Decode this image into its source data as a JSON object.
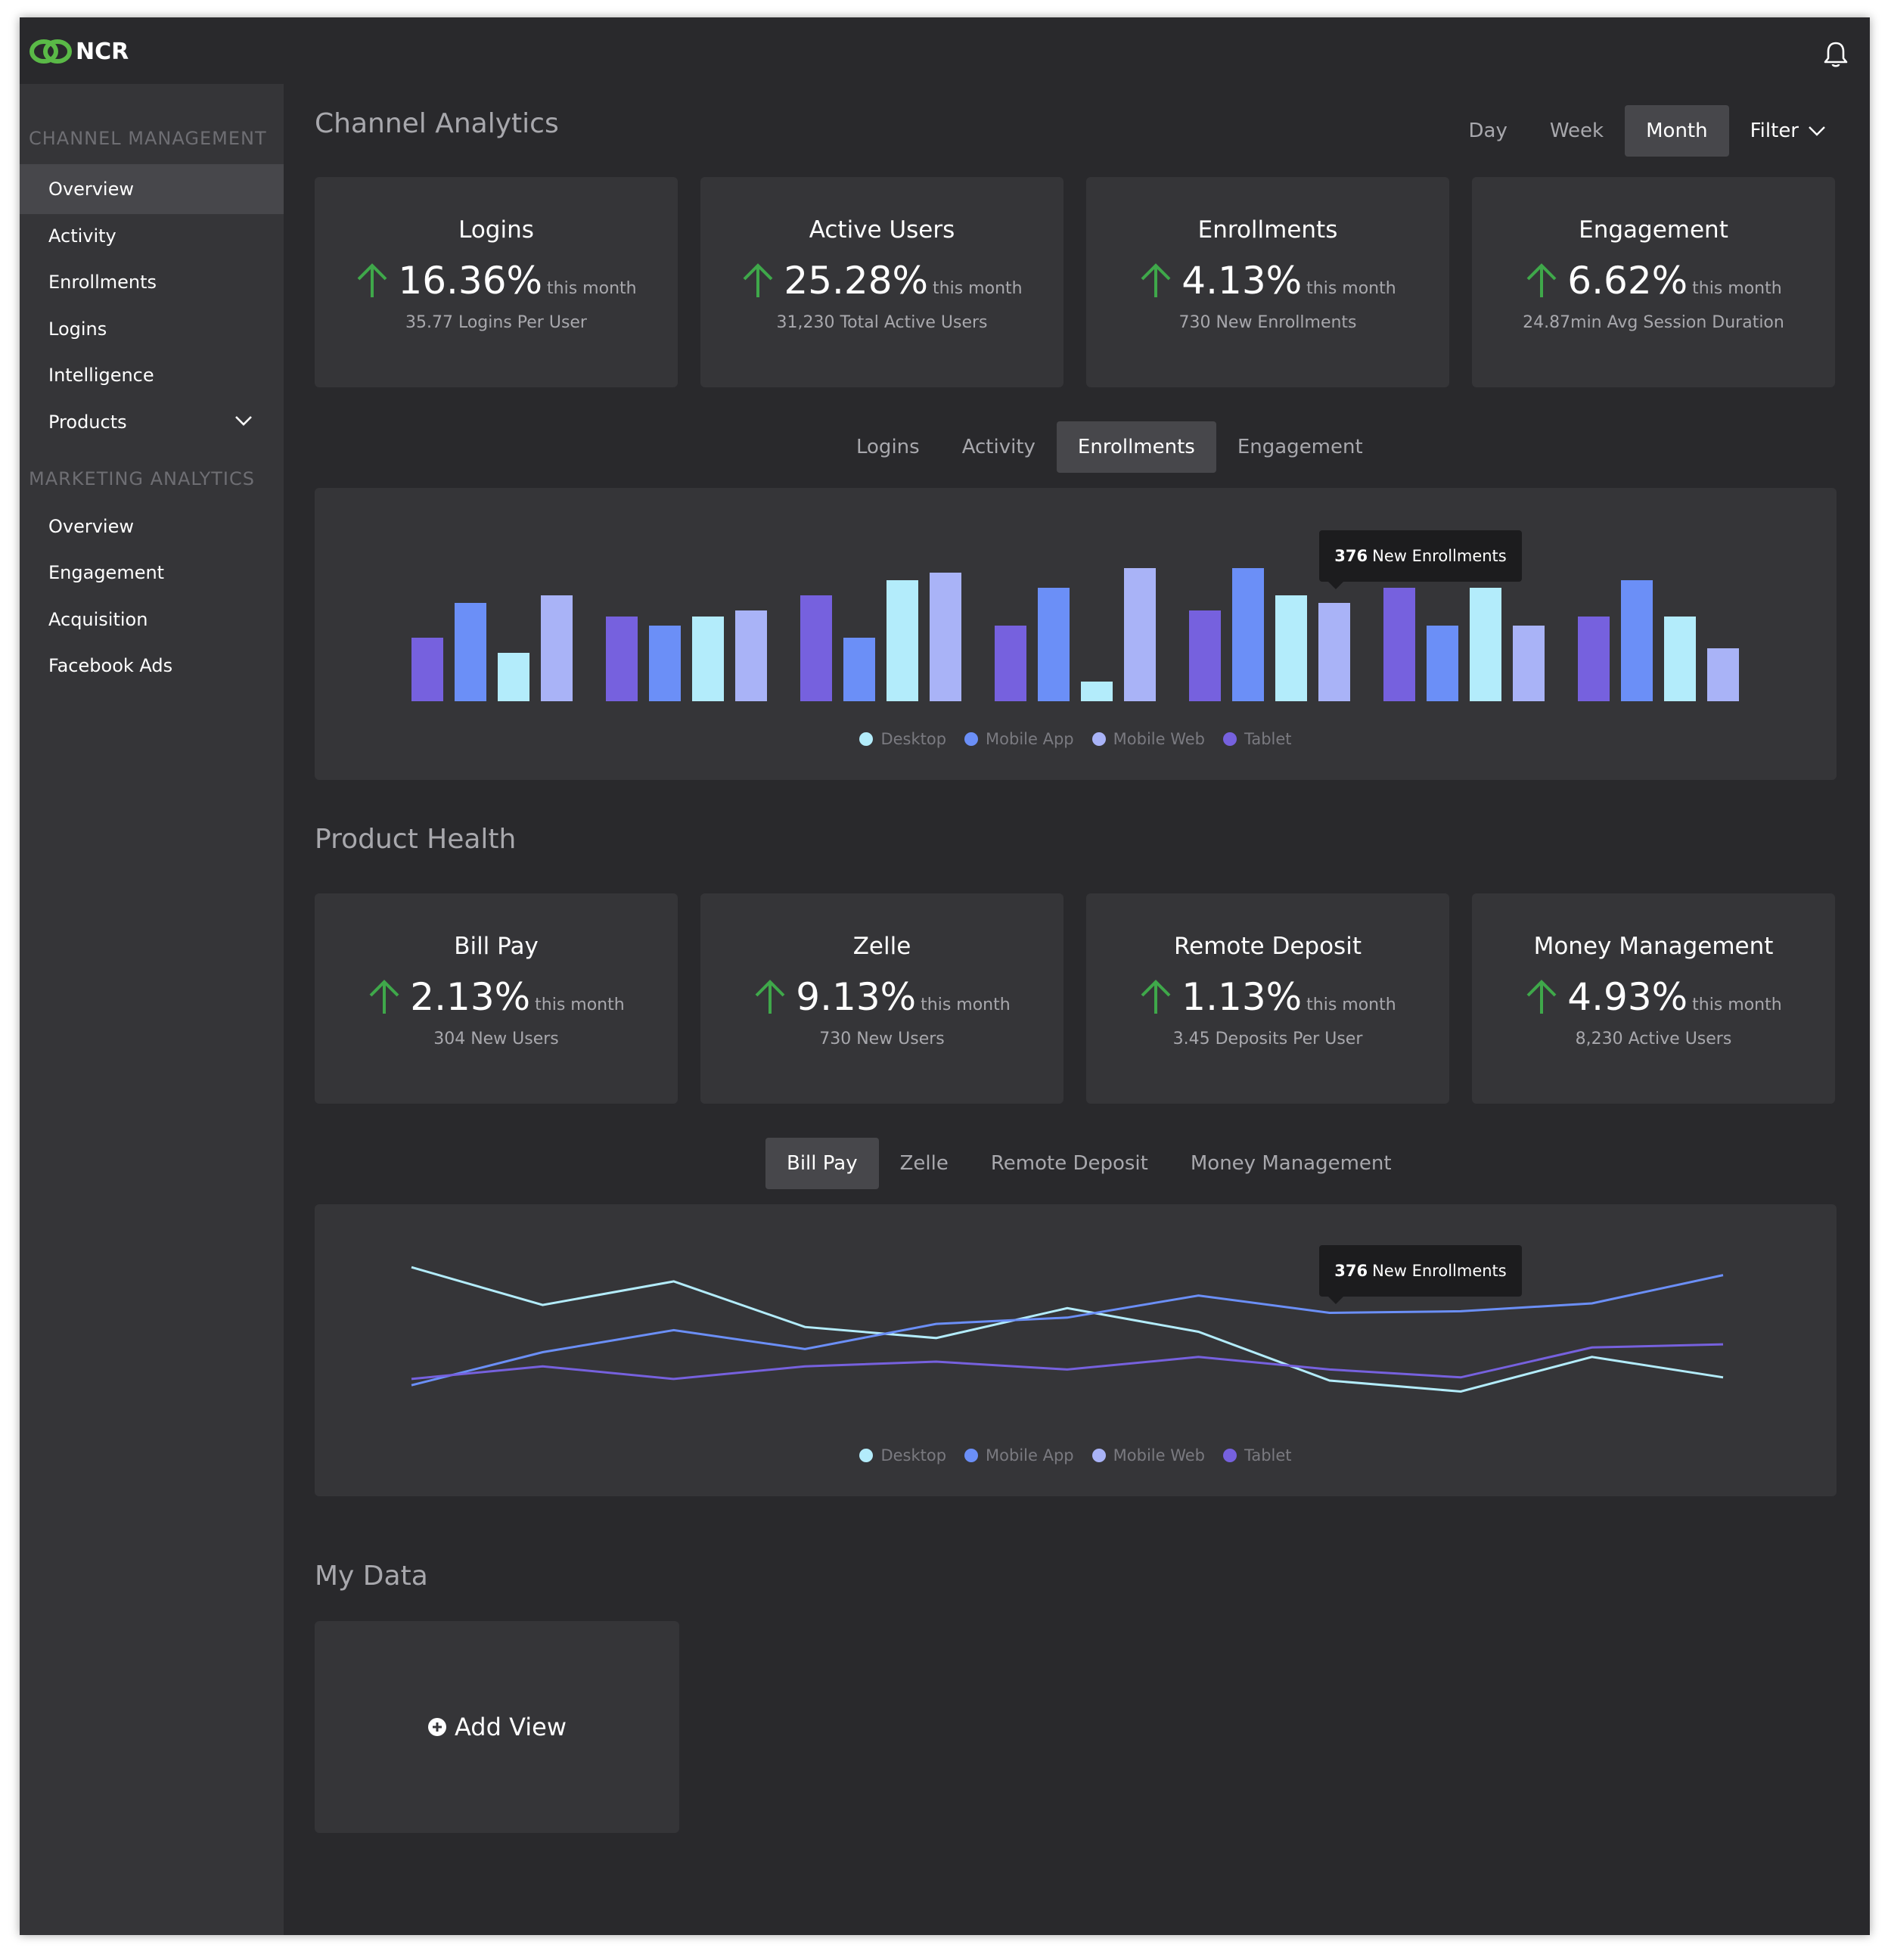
{
  "brand": {
    "name": "NCR"
  },
  "sidebar": {
    "sections": [
      {
        "title": "CHANNEL MANAGEMENT",
        "items": [
          "Overview",
          "Activity",
          "Enrollments",
          "Logins",
          "Intelligence",
          "Products"
        ]
      },
      {
        "title": "MARKETING ANALYTICS",
        "items": [
          "Overview",
          "Engagement",
          "Acquisition",
          "Facebook Ads"
        ]
      }
    ]
  },
  "channel": {
    "title": "Channel Analytics",
    "ranges": [
      "Day",
      "Week",
      "Month"
    ],
    "active_range": "Month",
    "filter_label": "Filter",
    "cards": [
      {
        "title": "Logins",
        "value": "16.36%",
        "unit": "this month",
        "sub": "35.77 Logins Per User"
      },
      {
        "title": "Active Users",
        "value": "25.28%",
        "unit": "this month",
        "sub": "31,230 Total Active Users"
      },
      {
        "title": "Enrollments",
        "value": "4.13%",
        "unit": "this month",
        "sub": "730 New Enrollments"
      },
      {
        "title": "Engagement",
        "value": "6.62%",
        "unit": "this month",
        "sub": "24.87min Avg Session Duration"
      }
    ],
    "tabs": [
      "Logins",
      "Activity",
      "Enrollments",
      "Engagement"
    ],
    "active_tab": "Enrollments",
    "tooltip": {
      "value": "376",
      "label": "New Enrollments"
    }
  },
  "product": {
    "title": "Product Health",
    "cards": [
      {
        "title": "Bill Pay",
        "value": "2.13%",
        "unit": "this month",
        "sub": "304 New Users"
      },
      {
        "title": "Zelle",
        "value": "9.13%",
        "unit": "this month",
        "sub": "730 New Users"
      },
      {
        "title": "Remote Deposit",
        "value": "1.13%",
        "unit": "this month",
        "sub": "3.45 Deposits Per User"
      },
      {
        "title": "Money Management",
        "value": "4.93%",
        "unit": "this month",
        "sub": "8,230 Active Users"
      }
    ],
    "tabs": [
      "Bill Pay",
      "Zelle",
      "Remote Deposit",
      "Money Management"
    ],
    "active_tab": "Bill Pay",
    "tooltip": {
      "value": "376",
      "label": "New Enrollments"
    }
  },
  "mydata": {
    "title": "My Data",
    "add_label": "Add View"
  },
  "colors": {
    "desktop": "#b3ecfb",
    "mobile_app": "#6b8ff7",
    "mobile_web": "#a9b3f7",
    "tablet": "#7661de",
    "accent_up": "#3fa84a"
  },
  "chart_data": [
    {
      "type": "bar",
      "categories": [
        "1",
        "2",
        "3",
        "4",
        "5",
        "6",
        "7"
      ],
      "legend": [
        "Desktop",
        "Mobile App",
        "Mobile Web",
        "Tablet"
      ],
      "series": [
        {
          "name": "Tablet",
          "values": [
            42,
            56,
            70,
            50,
            60,
            75,
            56
          ]
        },
        {
          "name": "Mobile App",
          "values": [
            65,
            50,
            42,
            75,
            88,
            50,
            80
          ]
        },
        {
          "name": "Desktop",
          "values": [
            32,
            56,
            80,
            13,
            70,
            75,
            56
          ]
        },
        {
          "name": "Mobile Web",
          "values": [
            70,
            60,
            85,
            88,
            65,
            50,
            35
          ]
        }
      ],
      "ylim": [
        0,
        100
      ]
    },
    {
      "type": "line",
      "x": [
        1,
        2,
        3,
        4,
        5,
        6,
        7,
        8,
        9,
        10,
        11
      ],
      "legend": [
        "Desktop",
        "Mobile App",
        "Mobile Web",
        "Tablet"
      ],
      "series": [
        {
          "name": "Desktop",
          "values": [
            85,
            61,
            76,
            47,
            40,
            59,
            44,
            13,
            6,
            28,
            15
          ]
        },
        {
          "name": "Mobile App",
          "values": [
            10,
            31,
            45,
            33,
            49,
            53,
            67,
            56,
            57,
            62,
            80
          ]
        },
        {
          "name": "Tablet",
          "values": [
            14,
            22,
            14,
            22,
            25,
            20,
            28,
            20,
            15,
            34,
            36
          ]
        }
      ],
      "ylim": [
        0,
        100
      ]
    }
  ]
}
